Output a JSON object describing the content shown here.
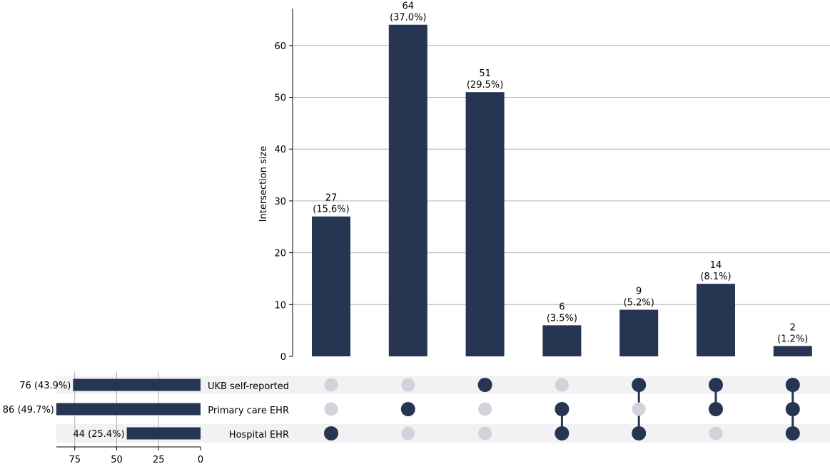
{
  "chart_data": {
    "type": "upset",
    "bar_color": "#263551",
    "dot_inactive_color": "#d0d3da",
    "band_color": "#f2f2f4",
    "grid_color": "#b0b0b0",
    "intersections": {
      "ylabel": "Intersection size",
      "ylim": [
        0,
        67
      ],
      "yticks": [
        "0",
        "10",
        "20",
        "30",
        "40",
        "50",
        "60"
      ],
      "values": [
        27,
        64,
        51,
        6,
        9,
        14,
        2
      ],
      "labels": [
        "27",
        "64",
        "51",
        "6",
        "9",
        "14",
        "2"
      ],
      "percent_labels": [
        "(15.6%)",
        "(37.0%)",
        "(29.5%)",
        "(3.5%)",
        "(5.2%)",
        "(8.1%)",
        "(1.2%)"
      ],
      "memberships": [
        [
          false,
          false,
          true
        ],
        [
          false,
          true,
          false
        ],
        [
          true,
          false,
          false
        ],
        [
          false,
          true,
          true
        ],
        [
          true,
          false,
          true
        ],
        [
          true,
          true,
          false
        ],
        [
          true,
          true,
          true
        ]
      ]
    },
    "sets": {
      "names": [
        "UKB self-reported",
        "Primary care EHR",
        "Hospital EHR"
      ],
      "values": [
        76,
        86,
        44
      ],
      "labels": [
        "76 (43.9%)",
        "86 (49.7%)",
        "44 (25.4%)"
      ],
      "xlim": [
        0,
        86
      ],
      "xticks": [
        "75",
        "50",
        "25",
        "0"
      ]
    }
  }
}
